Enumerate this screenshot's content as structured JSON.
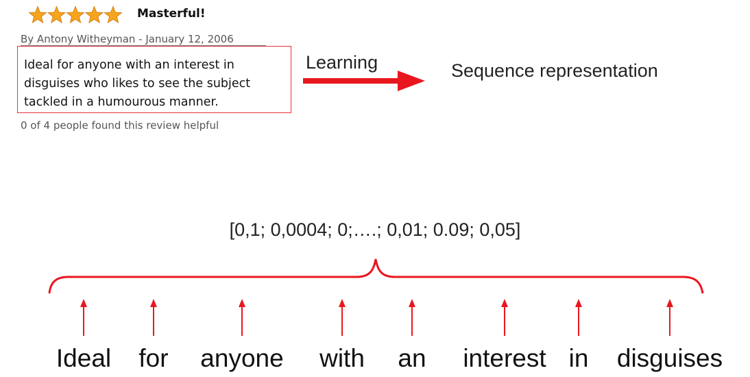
{
  "review": {
    "rating": 5,
    "title": "Masterful!",
    "byline": "By Antony Witheyman - January 12, 2006",
    "body_lines": [
      "Ideal for anyone with an interest in",
      "disguises who likes to see the subject",
      "tackled in a humourous manner."
    ],
    "helpful": "0 of 4 people found this review helpful"
  },
  "diagram": {
    "arrow_label": "Learning",
    "target_label": "Sequence representation",
    "vector": "[0,1; 0,0004; 0;….; 0,01; 0.09; 0,05]",
    "tokens": [
      "Ideal",
      "for",
      "anyone",
      "with",
      "an",
      "interest",
      "in",
      "disguises"
    ]
  },
  "colors": {
    "accent": "#e8171f",
    "star_fill": "#f7a51c",
    "star_stroke": "#d2811a"
  }
}
